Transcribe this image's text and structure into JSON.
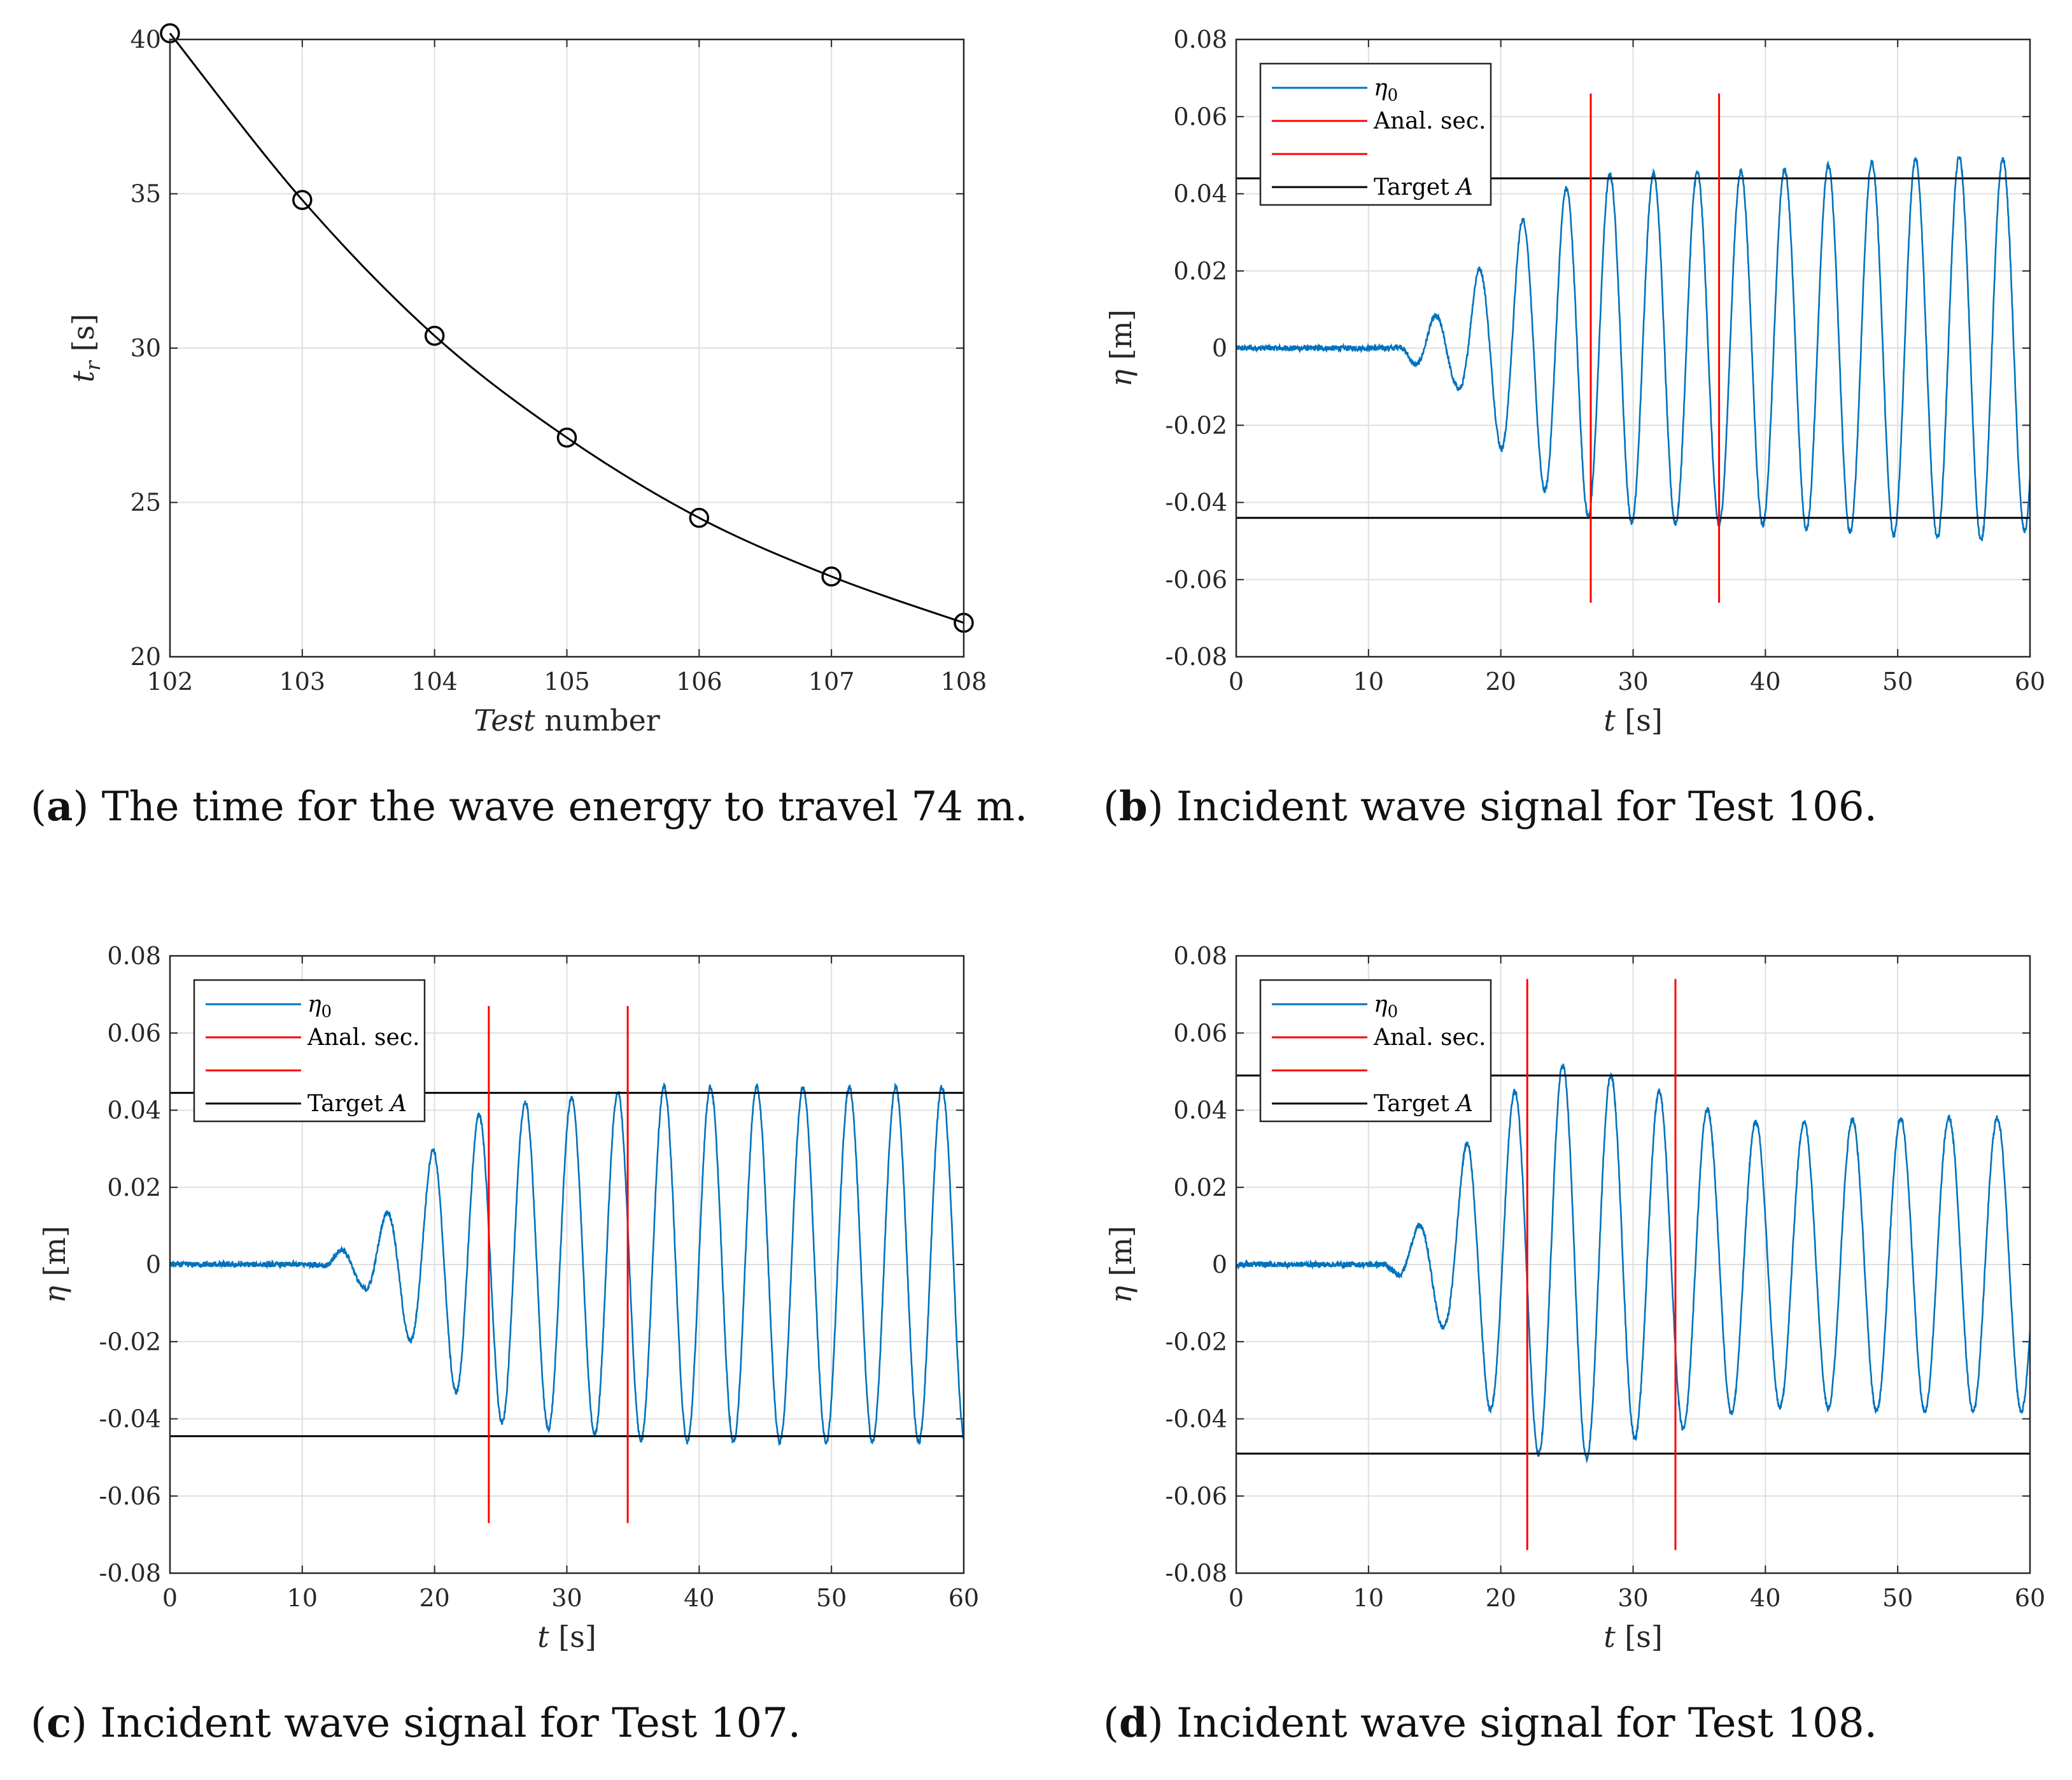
{
  "chart_data": [
    {
      "id": "a",
      "type": "line",
      "caption_letter": "a",
      "caption": "The time for the wave energy to travel 74 m.",
      "x": [
        102,
        103,
        104,
        105,
        106,
        107,
        108
      ],
      "y": [
        40.2,
        34.8,
        30.4,
        27.1,
        24.5,
        22.6,
        21.1
      ],
      "xlabel": "Test number",
      "ylabel": "t_r [s]",
      "xlim": [
        102,
        108
      ],
      "ylim": [
        20,
        40
      ],
      "xticks": [
        102,
        103,
        104,
        105,
        106,
        107,
        108
      ],
      "yticks": [
        20,
        25,
        30,
        35,
        40
      ],
      "xtick_labels": [
        "102",
        "103",
        "104",
        "105",
        "106",
        "107",
        "108"
      ],
      "ytick_labels": [
        "20",
        "25",
        "30",
        "35",
        "40"
      ],
      "marker": "circle",
      "grid": true,
      "color": "#000000"
    },
    {
      "id": "b",
      "type": "line",
      "caption_letter": "b",
      "caption": "Incident wave signal for Test 106.",
      "xlabel": "t [s]",
      "ylabel": "η [m]",
      "xlim": [
        0,
        60
      ],
      "ylim": [
        -0.08,
        0.08
      ],
      "xticks": [
        0,
        10,
        20,
        30,
        40,
        50,
        60
      ],
      "yticks": [
        -0.08,
        -0.06,
        -0.04,
        -0.02,
        0,
        0.02,
        0.04,
        0.06,
        0.08
      ],
      "xtick_labels": [
        "0",
        "10",
        "20",
        "30",
        "40",
        "50",
        "60"
      ],
      "ytick_labels": [
        "-0.08",
        "-0.06",
        "-0.04",
        "-0.02",
        "0",
        "0.02",
        "0.04",
        "0.06",
        "0.08"
      ],
      "grid": true,
      "legend": [
        "η0",
        "Anal. sec.",
        "",
        "Target A"
      ],
      "legend_position": "top-left",
      "series_color": "#0072BD",
      "section_color": "#FF0000",
      "target_color": "#000000",
      "target_amplitude": 0.044,
      "analysis_section": [
        26.8,
        36.5
      ],
      "section_line_range": [
        -0.066,
        0.066
      ],
      "wave": {
        "period": 3.3,
        "first_trough_time": 16.7,
        "ramp_start": 12.2,
        "ramp_end": 25.0,
        "amplitudes": [
          [
            12.0,
            0.0
          ],
          [
            14.8,
            0.008
          ],
          [
            16.7,
            0.01
          ],
          [
            18.2,
            0.02
          ],
          [
            19.8,
            0.025
          ],
          [
            21.5,
            0.033
          ],
          [
            23.0,
            0.036
          ],
          [
            24.6,
            0.041
          ],
          [
            26.2,
            0.043
          ],
          [
            27.8,
            0.045
          ],
          [
            40.0,
            0.046
          ],
          [
            47.0,
            0.048
          ],
          [
            57.0,
            0.05
          ],
          [
            60.0,
            0.047
          ]
        ],
        "noise": 0.0007
      }
    },
    {
      "id": "c",
      "type": "line",
      "caption_letter": "c",
      "caption": "Incident wave signal for Test 107.",
      "xlabel": "t [s]",
      "ylabel": "η [m]",
      "xlim": [
        0,
        60
      ],
      "ylim": [
        -0.08,
        0.08
      ],
      "xticks": [
        0,
        10,
        20,
        30,
        40,
        50,
        60
      ],
      "yticks": [
        -0.08,
        -0.06,
        -0.04,
        -0.02,
        0,
        0.02,
        0.04,
        0.06,
        0.08
      ],
      "xtick_labels": [
        "0",
        "10",
        "20",
        "30",
        "40",
        "50",
        "60"
      ],
      "ytick_labels": [
        "-0.08",
        "-0.06",
        "-0.04",
        "-0.02",
        "0",
        "0.02",
        "0.04",
        "0.06",
        "0.08"
      ],
      "grid": true,
      "legend": [
        "η0",
        "Anal. sec.",
        "",
        "Target A"
      ],
      "legend_position": "top-left",
      "series_color": "#0072BD",
      "section_color": "#FF0000",
      "target_color": "#000000",
      "target_amplitude": 0.0445,
      "analysis_section": [
        24.1,
        34.6
      ],
      "section_line_range": [
        -0.067,
        0.067
      ],
      "wave": {
        "period": 3.5,
        "first_trough_time": 14.6,
        "ramp_start": 11.5,
        "ramp_end": 25.0,
        "amplitudes": [
          [
            11.5,
            0.0
          ],
          [
            13.0,
            0.004
          ],
          [
            14.6,
            0.006
          ],
          [
            16.5,
            0.014
          ],
          [
            18.2,
            0.02
          ],
          [
            19.9,
            0.03
          ],
          [
            21.6,
            0.033
          ],
          [
            23.4,
            0.039
          ],
          [
            25.0,
            0.041
          ],
          [
            26.8,
            0.042
          ],
          [
            30.0,
            0.043
          ],
          [
            37.0,
            0.046
          ],
          [
            60.0,
            0.046
          ]
        ],
        "noise": 0.0007
      }
    },
    {
      "id": "d",
      "type": "line",
      "caption_letter": "d",
      "caption": "Incident wave signal for Test 108.",
      "xlabel": "t [s]",
      "ylabel": "η [m]",
      "xlim": [
        0,
        60
      ],
      "ylim": [
        -0.08,
        0.08
      ],
      "xticks": [
        0,
        10,
        20,
        30,
        40,
        50,
        60
      ],
      "yticks": [
        -0.08,
        -0.06,
        -0.04,
        -0.02,
        0,
        0.02,
        0.04,
        0.06,
        0.08
      ],
      "xtick_labels": [
        "0",
        "10",
        "20",
        "30",
        "40",
        "50",
        "60"
      ],
      "ytick_labels": [
        "-0.08",
        "-0.06",
        "-0.04",
        "-0.02",
        "0",
        "0.02",
        "0.04",
        "0.06",
        "0.08"
      ],
      "grid": true,
      "legend": [
        "η0",
        "Anal. sec.",
        "",
        "Target A"
      ],
      "legend_position": "top-left",
      "series_color": "#0072BD",
      "section_color": "#FF0000",
      "target_color": "#000000",
      "target_amplitude": 0.049,
      "analysis_section": [
        22.0,
        33.2
      ],
      "section_line_range": [
        -0.074,
        0.074
      ],
      "wave": {
        "period": 3.65,
        "first_trough_time": 11.9,
        "ramp_start": 11.0,
        "ramp_end": 22.0,
        "amplitudes": [
          [
            11.0,
            0.0
          ],
          [
            12.0,
            0.002
          ],
          [
            14.0,
            0.011
          ],
          [
            15.8,
            0.017
          ],
          [
            17.6,
            0.033
          ],
          [
            19.4,
            0.038
          ],
          [
            21.3,
            0.046
          ],
          [
            23.2,
            0.05
          ],
          [
            25.0,
            0.052
          ],
          [
            26.7,
            0.05
          ],
          [
            28.5,
            0.049
          ],
          [
            30.5,
            0.044
          ],
          [
            32.0,
            0.045
          ],
          [
            35.8,
            0.04
          ],
          [
            39.0,
            0.037
          ],
          [
            44.0,
            0.037
          ],
          [
            48.0,
            0.038
          ],
          [
            60.0,
            0.038
          ]
        ],
        "noise": 0.0007
      }
    }
  ]
}
